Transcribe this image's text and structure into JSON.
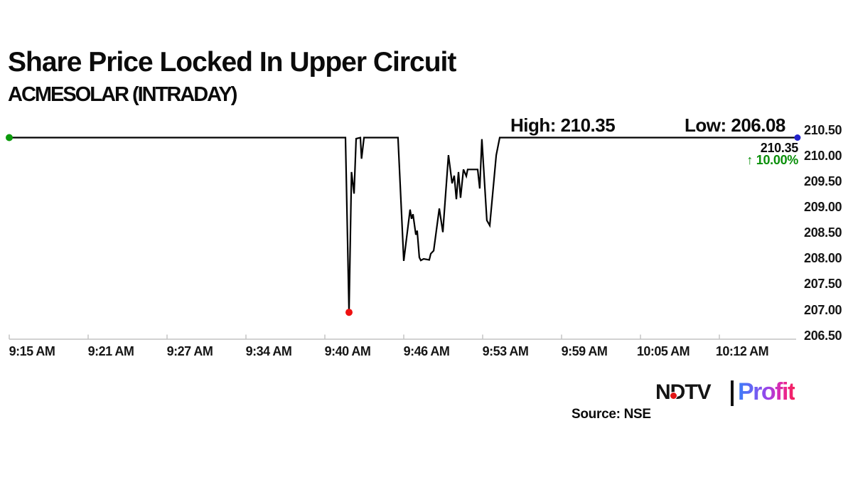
{
  "header": {
    "title": "Share Price Locked In Upper Circuit",
    "subtitle": "ACMESOLAR (INTRADAY)"
  },
  "chart_data": {
    "type": "line",
    "title": "Share Price Locked In Upper Circuit",
    "subtitle": "ACMESOLAR (INTRADAY)",
    "x_axis": {
      "tick_labels": [
        "9:15 AM",
        "9:21 AM",
        "9:27 AM",
        "9:34 AM",
        "9:40 AM",
        "9:46 AM",
        "9:53 AM",
        "9:59 AM",
        "10:05 AM",
        "10:12 AM"
      ]
    },
    "y_axis": {
      "tick_labels": [
        "210.50",
        "210.00",
        "209.50",
        "209.00",
        "208.50",
        "208.00",
        "207.50",
        "207.00",
        "206.50"
      ],
      "min": 206.5,
      "max": 210.5,
      "grid": false
    },
    "series": [
      {
        "name": "ACMESOLAR",
        "x_unit": "minutes since 9:15 AM",
        "points": [
          [
            0.0,
            210.35
          ],
          [
            26.98,
            210.35
          ],
          [
            27.27,
            206.95
          ],
          [
            27.47,
            209.68
          ],
          [
            27.67,
            209.26
          ],
          [
            27.84,
            210.33
          ],
          [
            28.18,
            210.35
          ],
          [
            28.27,
            209.94
          ],
          [
            28.47,
            210.35
          ],
          [
            31.2,
            210.35
          ],
          [
            31.66,
            207.95
          ],
          [
            32.17,
            208.95
          ],
          [
            32.29,
            208.77
          ],
          [
            32.4,
            208.86
          ],
          [
            32.63,
            208.46
          ],
          [
            32.74,
            208.54
          ],
          [
            32.91,
            208.02
          ],
          [
            33.03,
            207.96
          ],
          [
            33.26,
            207.99
          ],
          [
            33.71,
            207.97
          ],
          [
            33.83,
            208.09
          ],
          [
            34.06,
            208.15
          ],
          [
            34.51,
            208.97
          ],
          [
            34.8,
            208.51
          ],
          [
            35.25,
            210.01
          ],
          [
            35.54,
            209.46
          ],
          [
            35.71,
            209.61
          ],
          [
            35.88,
            209.15
          ],
          [
            36.05,
            209.68
          ],
          [
            36.22,
            209.18
          ],
          [
            36.45,
            209.73
          ],
          [
            36.68,
            209.6
          ],
          [
            36.79,
            209.73
          ],
          [
            37.59,
            209.73
          ],
          [
            37.76,
            209.36
          ],
          [
            37.93,
            210.32
          ],
          [
            38.33,
            208.74
          ],
          [
            38.56,
            208.64
          ],
          [
            39.08,
            210.01
          ],
          [
            39.36,
            210.35
          ],
          [
            63.26,
            210.35
          ]
        ]
      }
    ],
    "annotations": {
      "high_label": "High: 210.35",
      "low_label": "Low: 206.08",
      "last_price": "210.35",
      "change": "↑ 10.00%"
    },
    "legend": "none",
    "line_color": "#000000",
    "markers": {
      "start_color": "#0c9a0c",
      "low_color": "#ee1111",
      "end_color": "#2323cc"
    }
  },
  "colors": {
    "change_green": "#0a8f0a",
    "axis_gray": "#c4c4c4"
  },
  "footer": {
    "source": "Source: NSE",
    "logo": {
      "ndtv": "NDTV",
      "profit": "Profit"
    }
  }
}
